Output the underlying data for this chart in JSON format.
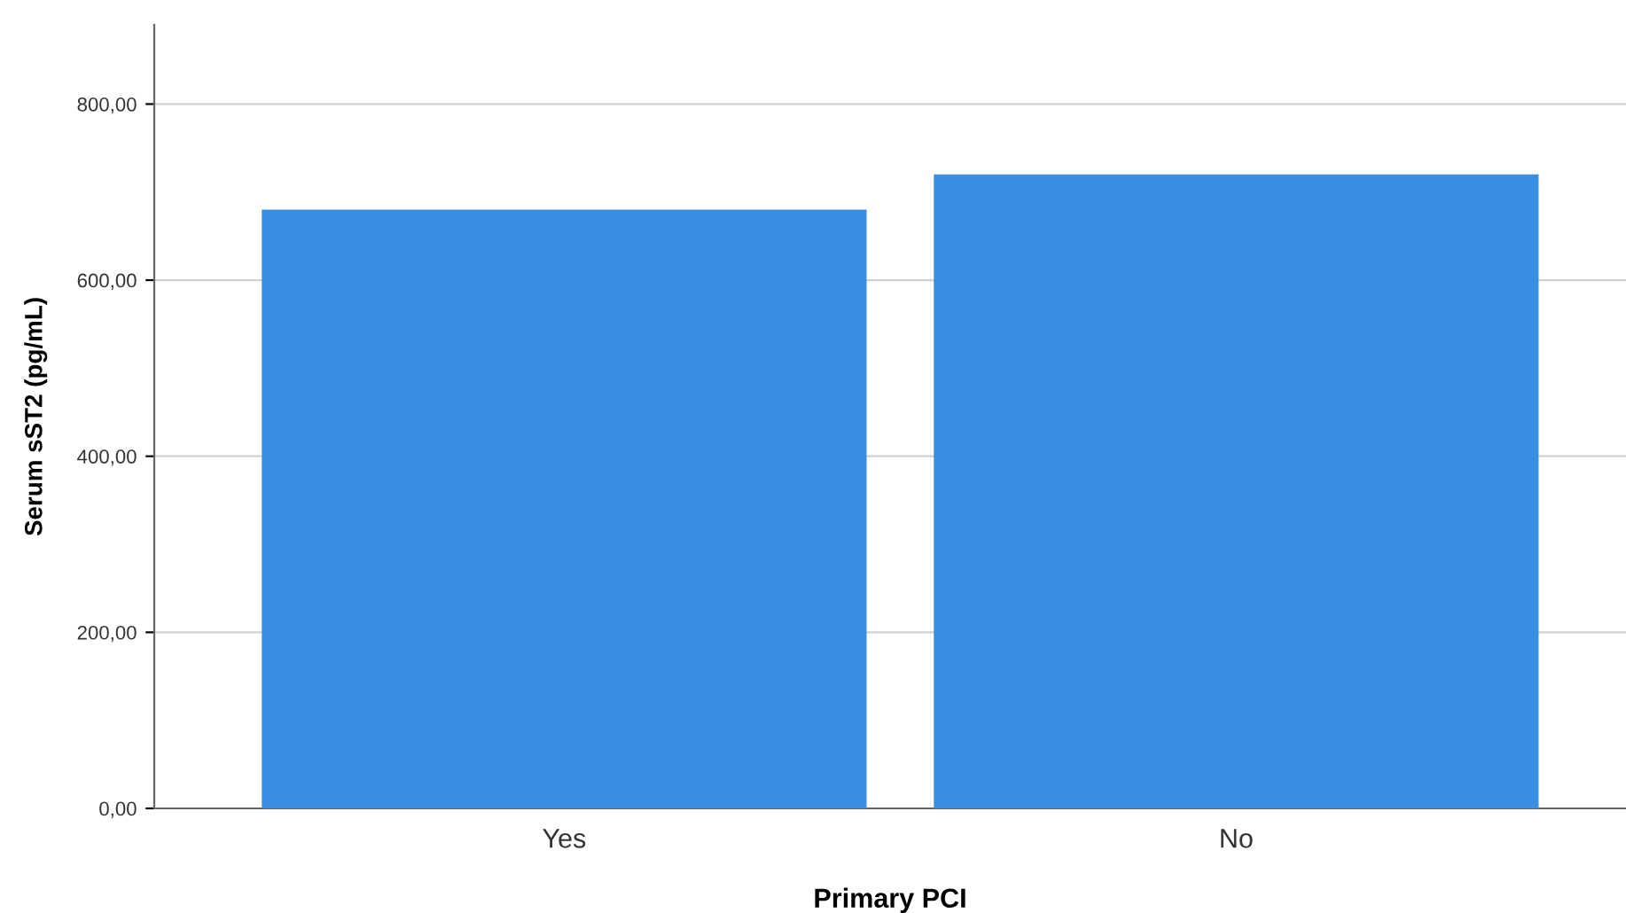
{
  "chart_data": {
    "type": "bar",
    "xlabel": "Primary PCI",
    "ylabel": "Serum sST2 (pg/mL)",
    "categories": [
      "Yes",
      "No"
    ],
    "values": [
      680,
      720
    ],
    "color": "#3a8ee6",
    "ylim": [
      0,
      890
    ],
    "yticks": [
      {
        "value": 0,
        "label": "0,00"
      },
      {
        "value": 200,
        "label": "200,00"
      },
      {
        "value": 400,
        "label": "400,00"
      },
      {
        "value": 600,
        "label": "600,00"
      },
      {
        "value": 800,
        "label": "800,00"
      }
    ],
    "grid": "y"
  }
}
